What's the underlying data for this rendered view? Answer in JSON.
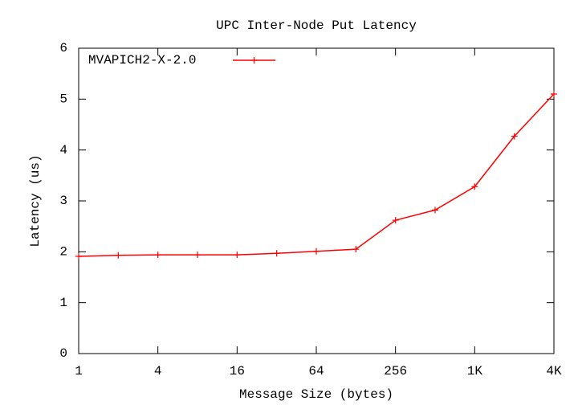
{
  "chart_data": {
    "type": "line",
    "title": "UPC Inter-Node Put Latency",
    "x_label": "Message Size (bytes)",
    "y_label": "Latency (us)",
    "x": [
      1,
      2,
      4,
      8,
      16,
      32,
      64,
      128,
      256,
      512,
      1024,
      2048,
      4096
    ],
    "series": [
      {
        "name": "MVAPICH2-X-2.0",
        "color": "#ff0000",
        "values": [
          1.91,
          1.93,
          1.94,
          1.94,
          1.94,
          1.97,
          2.01,
          2.05,
          2.62,
          2.82,
          3.28,
          4.27,
          5.1
        ]
      }
    ],
    "x_log_base": 2,
    "xlim": [
      1,
      4096
    ],
    "xticks": [
      1,
      4,
      16,
      64,
      256,
      {
        "value": 1024,
        "label": "1K"
      },
      {
        "value": 4096,
        "label": "4K"
      }
    ],
    "ylim": [
      0,
      6
    ],
    "yticks": [
      0,
      1,
      2,
      3,
      4,
      5,
      6
    ],
    "grid": false,
    "legend": "top-left"
  }
}
